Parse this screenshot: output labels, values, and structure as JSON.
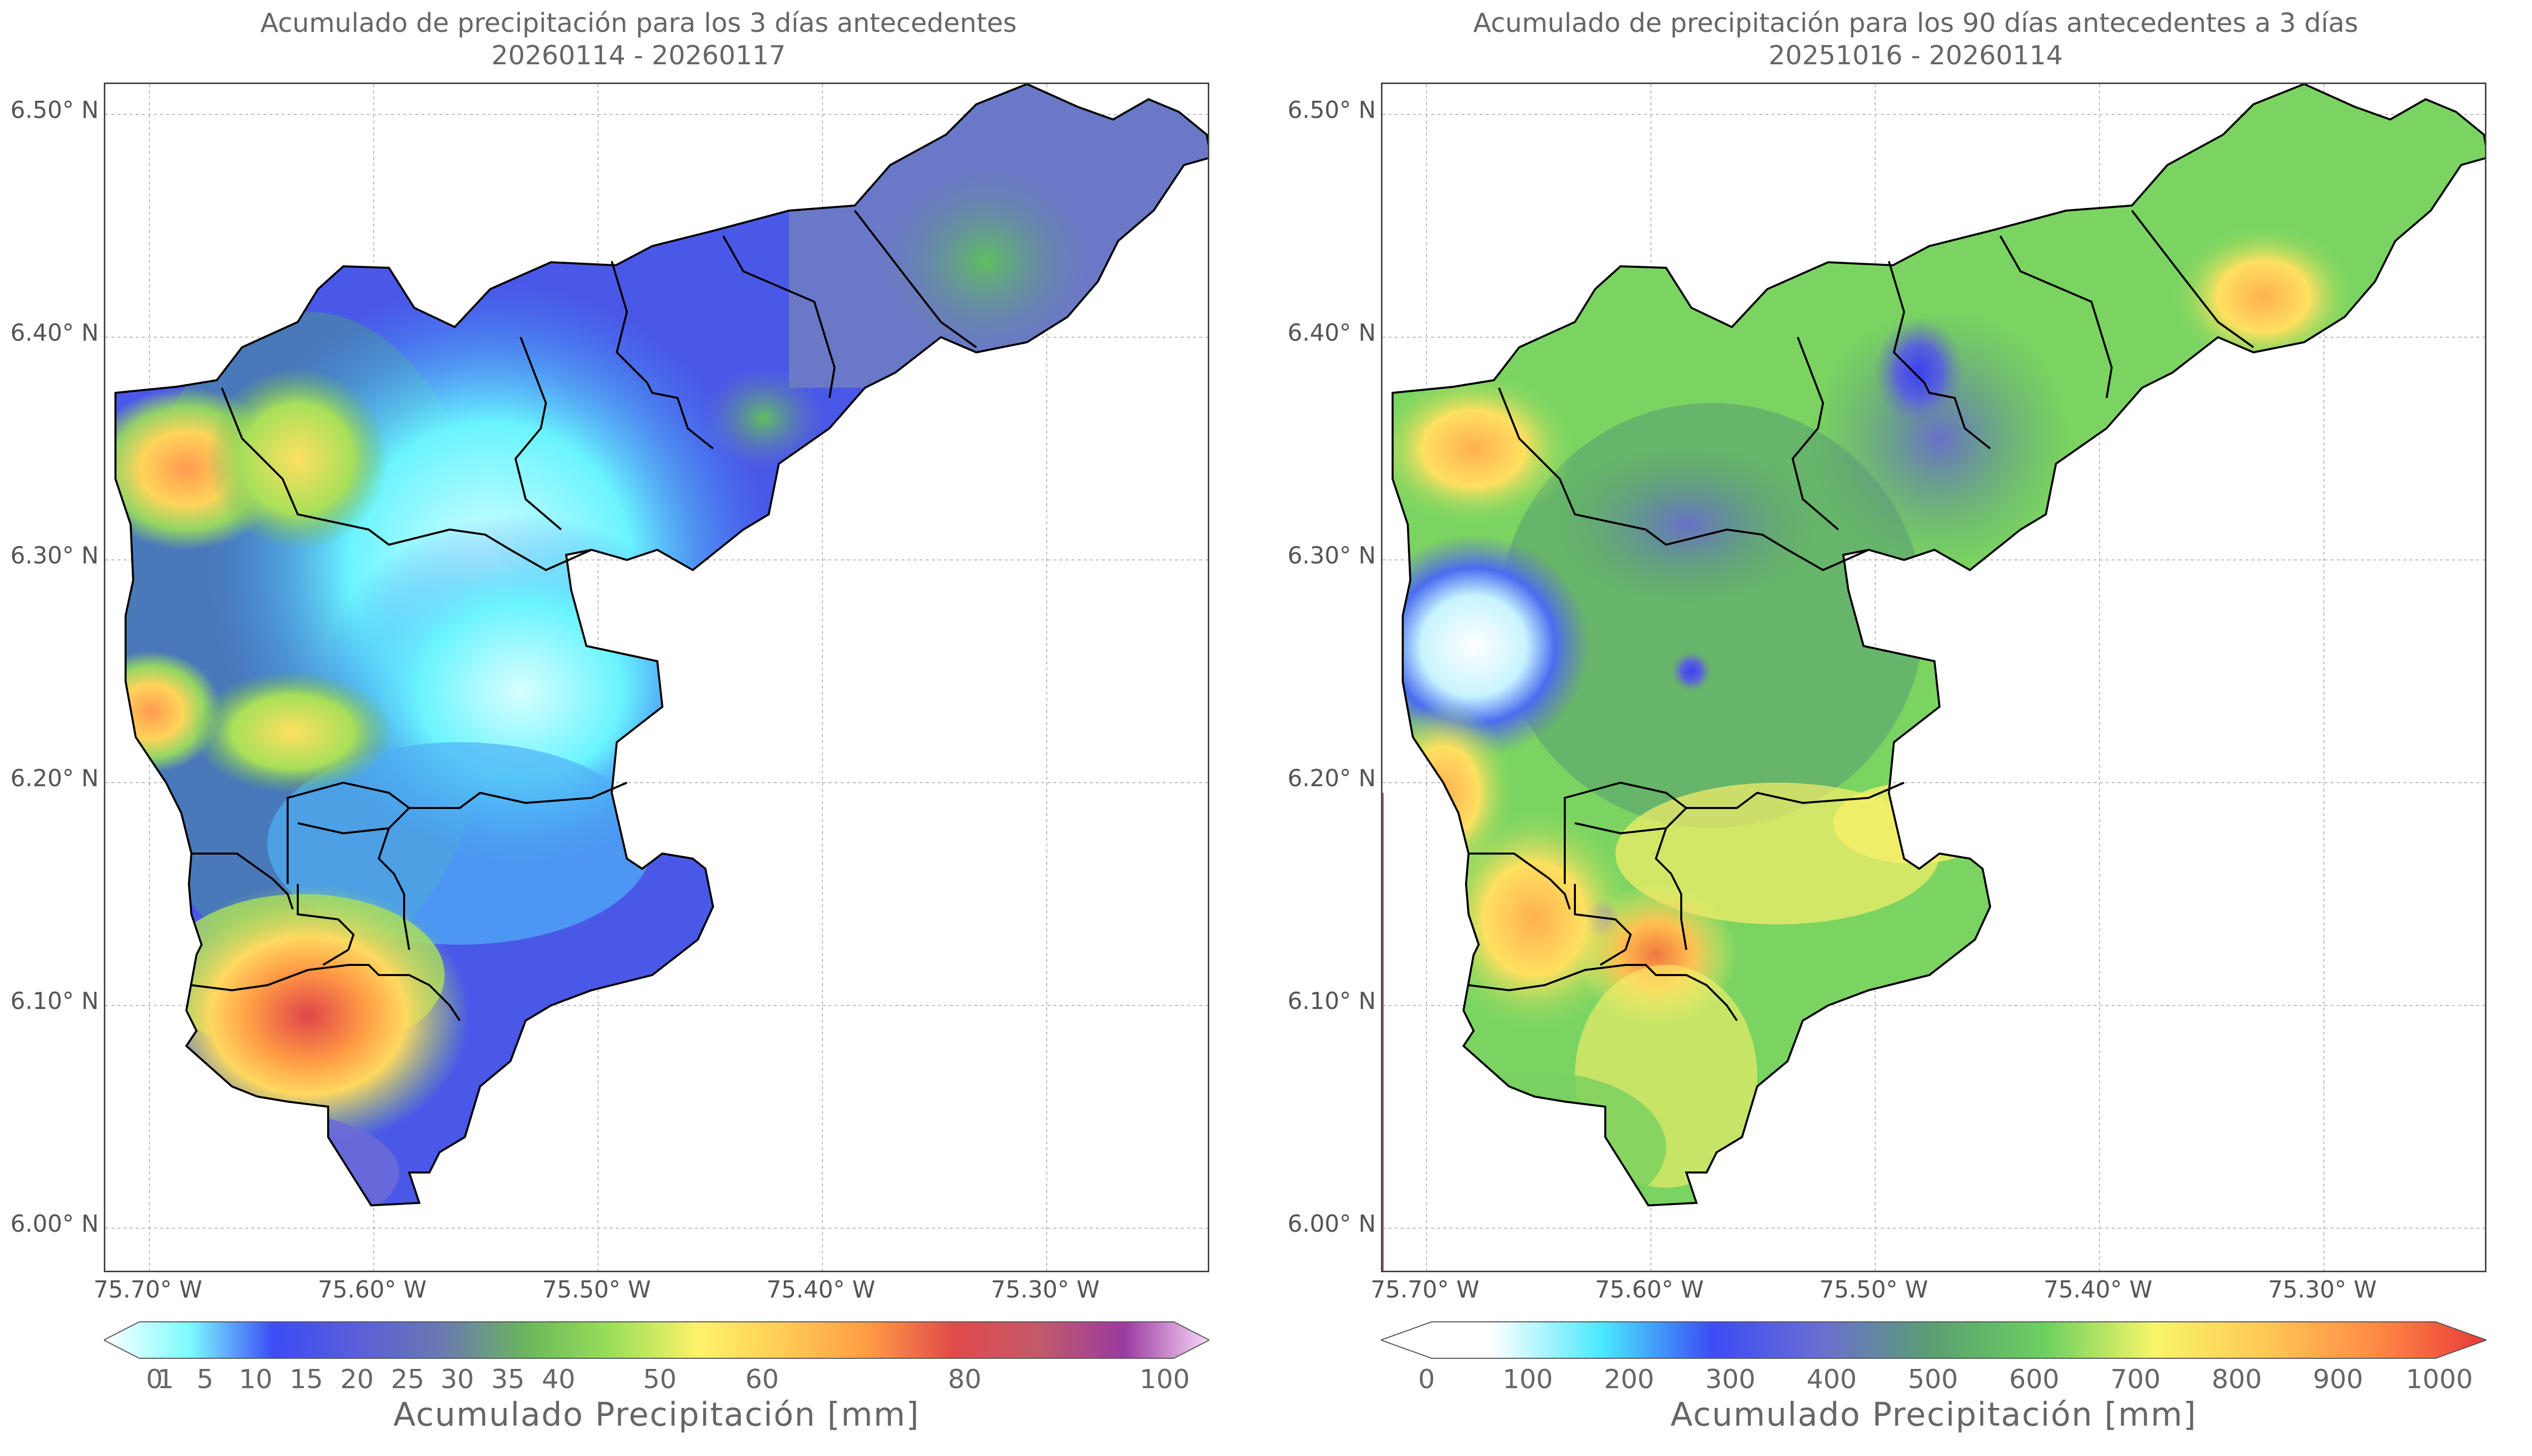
{
  "panels": [
    {
      "title_line1": "Acumulado de precipitación para los 3 días antecedentes",
      "title_line2": "20260114 - 20260117",
      "lat_labels": [
        "6.50° N",
        "6.40° N",
        "6.30° N",
        "6.20° N",
        "6.10° N",
        "6.00° N"
      ],
      "lon_labels": [
        "75.70° W",
        "75.60° W",
        "75.50° W",
        "75.40° W",
        "75.30° W"
      ],
      "colorbar_ticks": [
        "0",
        "1",
        "5",
        "10",
        "15",
        "20",
        "25",
        "30",
        "35",
        "40",
        "50",
        "60",
        "80",
        "100"
      ],
      "colorbar_label": "Acumulado Precipitación [mm]",
      "colorbar_colors": [
        "#ffffff",
        "#7dfcff",
        "#3b4cf5",
        "#5a5fd8",
        "#6a7ab0",
        "#6bb85a",
        "#9de05a",
        "#fff26a",
        "#ffcb55",
        "#ff9a45",
        "#e04a4a",
        "#c25a6a",
        "#9a3aa0",
        "#f8d8f8"
      ]
    },
    {
      "title_line1": "Acumulado de precipitación para los 90 días antecedentes a 3 días",
      "title_line2": "20251016 - 20260114",
      "lat_labels": [
        "6.50° N",
        "6.40° N",
        "6.30° N",
        "6.20° N",
        "6.10° N",
        "6.00° N"
      ],
      "lon_labels": [
        "75.70° W",
        "75.60° W",
        "75.50° W",
        "75.40° W",
        "75.30° W"
      ],
      "colorbar_ticks": [
        "0",
        "100",
        "200",
        "300",
        "400",
        "500",
        "600",
        "700",
        "800",
        "900",
        "1000"
      ],
      "colorbar_label": "Acumulado Precipitación [mm]",
      "colorbar_colors": [
        "#ffffff",
        "#ffffff",
        "#4ae8ff",
        "#3b4cf5",
        "#6a6fd0",
        "#5aa070",
        "#6bd060",
        "#f8f56a",
        "#ffc855",
        "#ff8a45",
        "#e83a3a"
      ]
    }
  ]
}
